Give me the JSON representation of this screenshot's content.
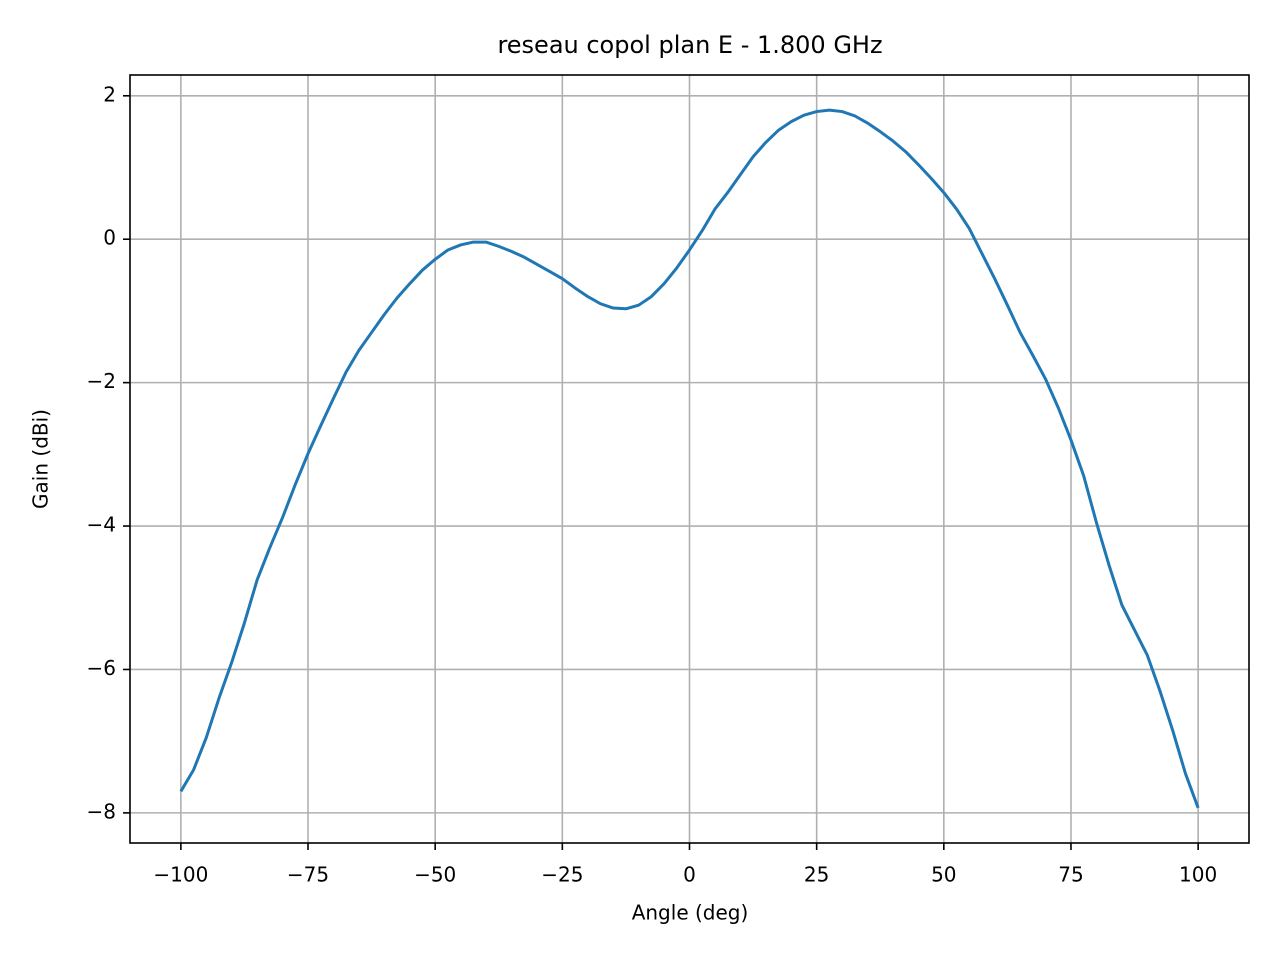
{
  "chart_data": {
    "type": "line",
    "title": "reseau copol plan E - 1.800 GHz",
    "x_label": "Angle (deg)",
    "y_label": "Gain (dBi)",
    "grid": true,
    "xlim": [
      -110,
      110
    ],
    "ylim": [
      -8.42,
      2.29
    ],
    "xticks": [
      {
        "value": -100,
        "label": "−100"
      },
      {
        "value": -75,
        "label": "−75"
      },
      {
        "value": -50,
        "label": "−50"
      },
      {
        "value": -25,
        "label": "−25"
      },
      0,
      25,
      50,
      75,
      100
    ],
    "yticks": [
      {
        "value": -8,
        "label": "−8"
      },
      {
        "value": -6,
        "label": "−6"
      },
      {
        "value": -4,
        "label": "−4"
      },
      {
        "value": -2,
        "label": "−2"
      },
      0,
      2
    ],
    "x": [
      -100,
      -97.5,
      -95,
      -92.5,
      -90,
      -87.5,
      -85,
      -82.5,
      -80,
      -77.5,
      -75,
      -72.5,
      -70,
      -67.5,
      -65,
      -62.5,
      -60,
      -57.5,
      -55,
      -52.5,
      -50,
      -47.5,
      -45,
      -42.5,
      -40,
      -37.5,
      -35,
      -32.5,
      -30,
      -27.5,
      -25,
      -22.5,
      -20,
      -17.5,
      -15,
      -12.5,
      -10,
      -7.5,
      -5,
      -2.5,
      0,
      2.5,
      5,
      7.5,
      10,
      12.5,
      15,
      17.5,
      20,
      22.5,
      25,
      27.5,
      30,
      32.5,
      35,
      37.5,
      40,
      42.5,
      45,
      47.5,
      50,
      52.5,
      55,
      57.5,
      60,
      62.5,
      65,
      67.5,
      70,
      72.5,
      75,
      77.5,
      80,
      82.5,
      85,
      87.5,
      90,
      92.5,
      95,
      97.5,
      100
    ],
    "series": [
      {
        "color": "#1f77b4",
        "values": [
          -7.7,
          -7.4,
          -6.95,
          -6.4,
          -5.9,
          -5.35,
          -4.75,
          -4.3,
          -3.88,
          -3.42,
          -2.99,
          -2.6,
          -2.22,
          -1.85,
          -1.55,
          -1.3,
          -1.05,
          -0.82,
          -0.62,
          -0.43,
          -0.28,
          -0.15,
          -0.08,
          -0.04,
          -0.04,
          -0.1,
          -0.17,
          -0.25,
          -0.35,
          -0.45,
          -0.55,
          -0.68,
          -0.8,
          -0.9,
          -0.96,
          -0.97,
          -0.92,
          -0.8,
          -0.62,
          -0.4,
          -0.15,
          0.12,
          0.42,
          0.65,
          0.9,
          1.15,
          1.35,
          1.52,
          1.64,
          1.73,
          1.78,
          1.8,
          1.78,
          1.72,
          1.62,
          1.5,
          1.37,
          1.22,
          1.04,
          0.85,
          0.65,
          0.42,
          0.15,
          -0.2,
          -0.55,
          -0.92,
          -1.3,
          -1.62,
          -1.95,
          -2.35,
          -2.8,
          -3.3,
          -3.95,
          -4.55,
          -5.1,
          -5.45,
          -5.8,
          -6.3,
          -6.85,
          -7.45,
          -7.93
        ]
      }
    ]
  }
}
